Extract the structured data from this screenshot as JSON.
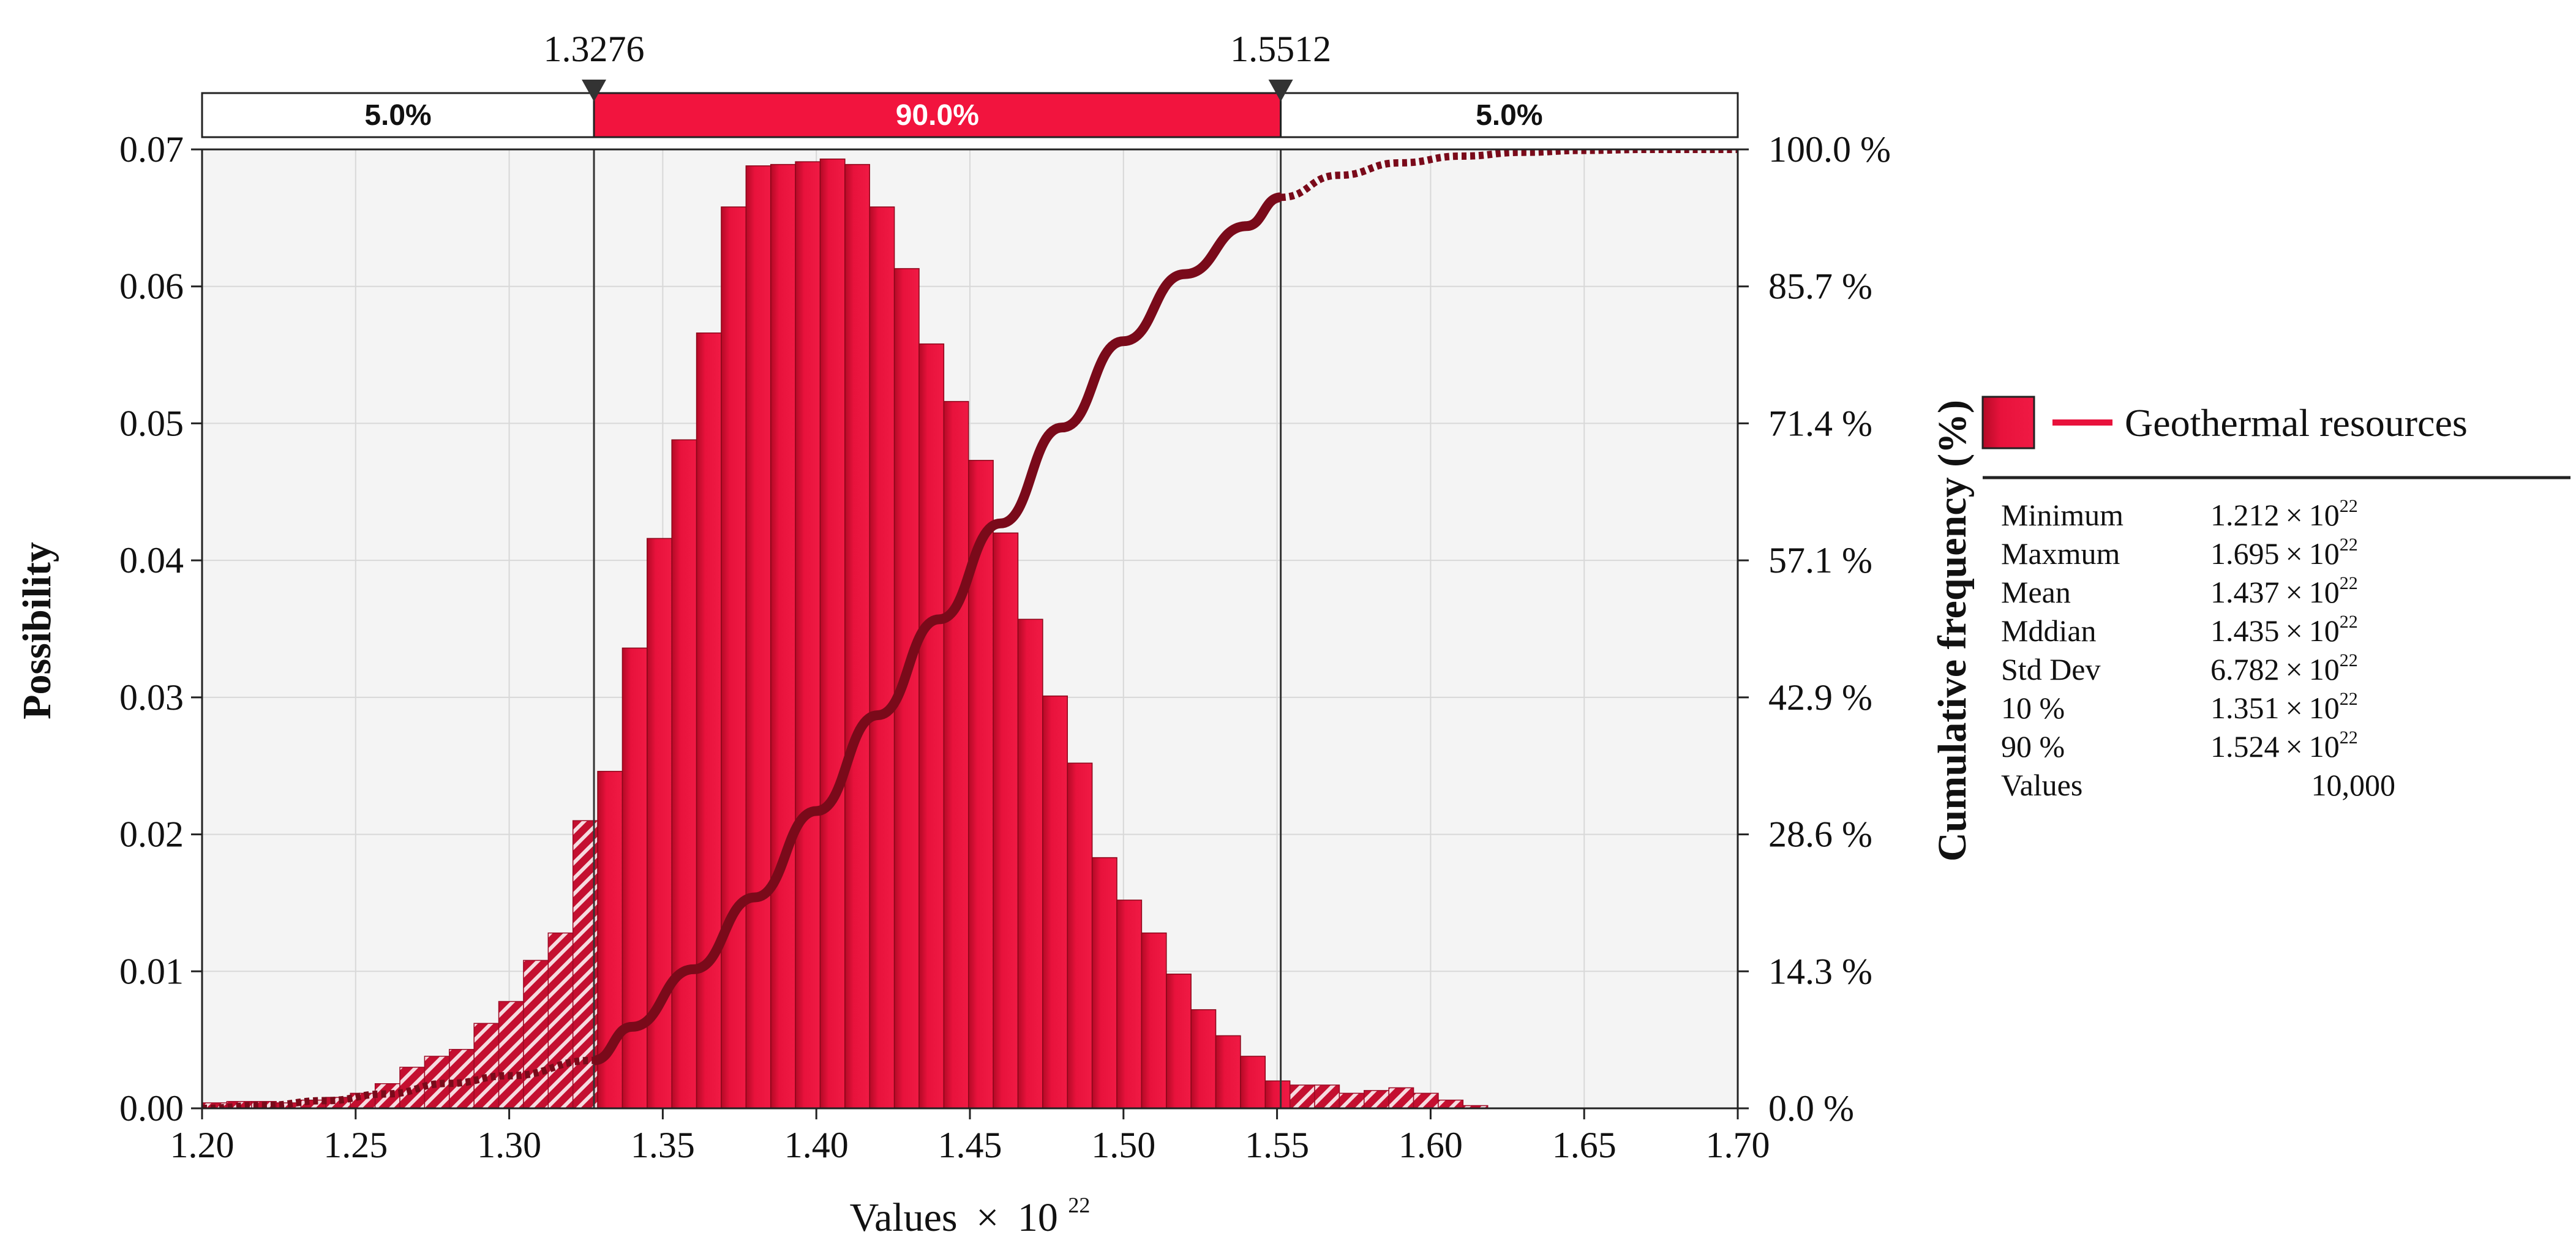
{
  "chart_data": {
    "type": "bar",
    "subtype": "histogram-with-cumulative-line",
    "xlabel_prefix": "Values",
    "xlabel_times": "×",
    "xlabel_base": "10",
    "xlabel_exp": "22",
    "ylabel": "Possibility",
    "y2label": "Cumulative frequency (%)",
    "xlim": [
      1.2,
      1.7
    ],
    "ylim": [
      0,
      0.07
    ],
    "y2lim": [
      0,
      100
    ],
    "grid": true,
    "x_ticks": [
      "1.20",
      "1.25",
      "1.30",
      "1.35",
      "1.40",
      "1.45",
      "1.50",
      "1.55",
      "1.60",
      "1.65",
      "1.70"
    ],
    "y_ticks": [
      "0.00",
      "0.01",
      "0.02",
      "0.03",
      "0.04",
      "0.05",
      "0.06",
      "0.07"
    ],
    "y2_ticks": [
      "0.0 %",
      "14.3 %",
      "28.6 %",
      "42.9 %",
      "57.1 %",
      "71.4 %",
      "85.7 %",
      "100.0 %"
    ],
    "bins": {
      "start": 1.2,
      "width": 0.00805,
      "values": [
        0.0004,
        0.0005,
        0.0005,
        0.0004,
        0.0006,
        0.0008,
        0.0011,
        0.0018,
        0.003,
        0.0038,
        0.0043,
        0.0062,
        0.0078,
        0.0108,
        0.0128,
        0.021,
        0.0246,
        0.0336,
        0.0416,
        0.0488,
        0.0566,
        0.0658,
        0.0688,
        0.0689,
        0.0691,
        0.0693,
        0.0689,
        0.0658,
        0.0613,
        0.0558,
        0.0516,
        0.0473,
        0.042,
        0.0357,
        0.0301,
        0.0252,
        0.0183,
        0.0152,
        0.0128,
        0.0098,
        0.0072,
        0.0053,
        0.0038,
        0.002,
        0.0017,
        0.0017,
        0.0011,
        0.0013,
        0.0015,
        0.0011,
        0.0006,
        0.0002
      ]
    },
    "cumulative": {
      "x": [
        1.2,
        1.22,
        1.24,
        1.26,
        1.28,
        1.3,
        1.3276,
        1.34,
        1.36,
        1.38,
        1.4,
        1.42,
        1.44,
        1.46,
        1.48,
        1.5,
        1.52,
        1.54,
        1.5512,
        1.57,
        1.59,
        1.61,
        1.63,
        1.65,
        1.67,
        1.7
      ],
      "y": [
        0,
        0.3,
        0.8,
        1.5,
        2.6,
        3.4,
        5.0,
        8.5,
        14.5,
        22,
        31,
        41,
        51,
        61,
        71,
        80,
        87,
        92,
        95,
        97.3,
        98.6,
        99.3,
        99.7,
        99.9,
        100,
        100
      ]
    },
    "lower_bound": "1.3276",
    "upper_bound": "1.5512",
    "lower_bound_value": 1.3276,
    "upper_bound_value": 1.5512,
    "band_left": "5.0%",
    "band_middle": "90.0%",
    "band_right": "5.0%",
    "legend_series": "Geothermal resources",
    "stats": [
      {
        "label": "Minimum",
        "mantissa": "1.212",
        "times": "×",
        "base": "10",
        "exp": "22"
      },
      {
        "label": "Maxmum",
        "mantissa": "1.695",
        "times": "×",
        "base": "10",
        "exp": "22"
      },
      {
        "label": "Mean",
        "mantissa": "1.437",
        "times": "×",
        "base": "10",
        "exp": "22"
      },
      {
        "label": "Mddian",
        "mantissa": "1.435",
        "times": "×",
        "base": "10",
        "exp": "22"
      },
      {
        "label": "Std Dev",
        "mantissa": "6.782",
        "times": "×",
        "base": "10",
        "exp": "22"
      },
      {
        "label": "10 %",
        "mantissa": "1.351",
        "times": "×",
        "base": "10",
        "exp": "22"
      },
      {
        "label": "90 %",
        "mantissa": "1.524",
        "times": "×",
        "base": "10",
        "exp": "22"
      },
      {
        "label": "Values",
        "plain": "10,000"
      }
    ],
    "colors": {
      "bar": "#e8123c",
      "bar_dark": "#a3071f",
      "line": "#7a0a1a",
      "band_fill": "#f2143e",
      "grid": "#d8d8d8",
      "plot_bg": "#f4f4f4"
    }
  }
}
